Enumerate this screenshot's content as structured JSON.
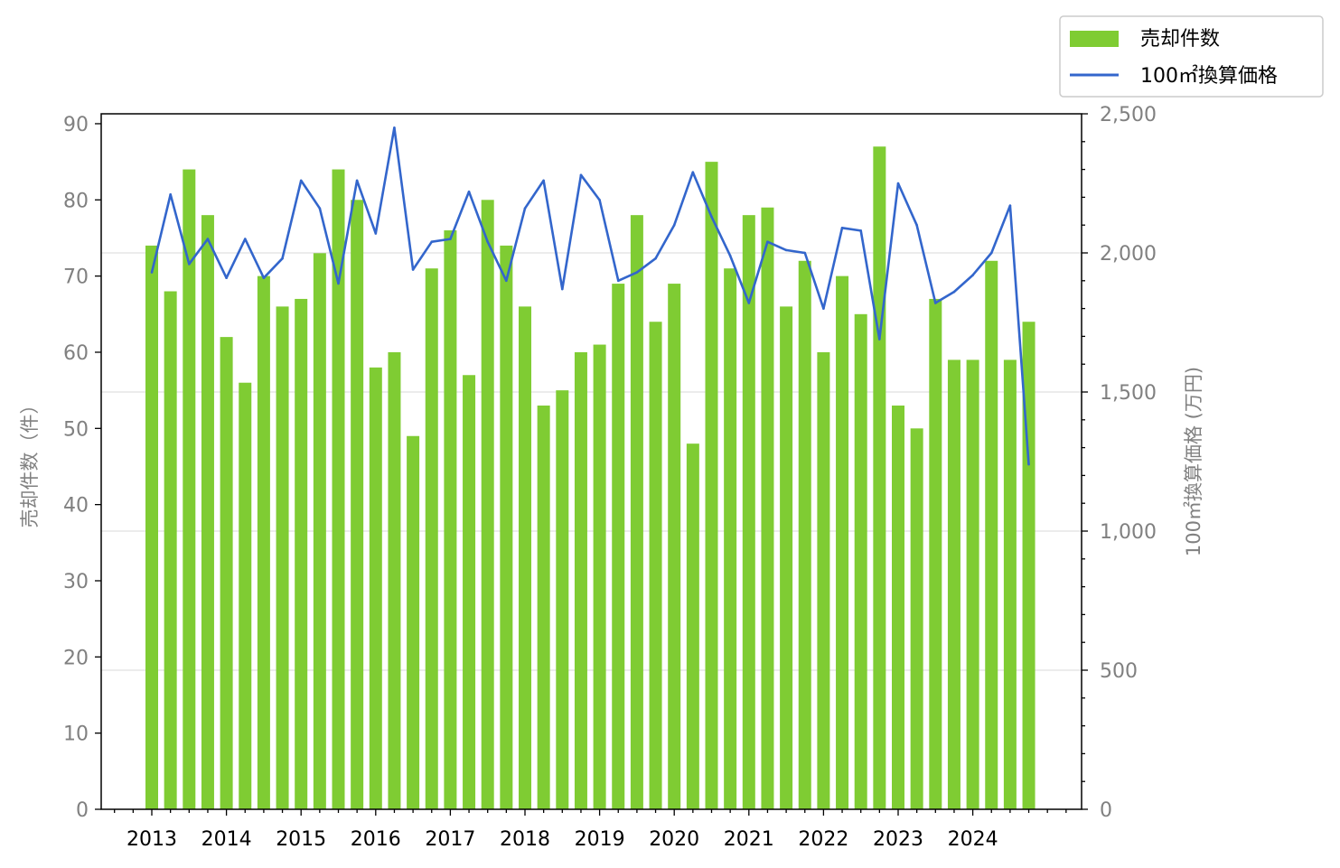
{
  "chart_data": {
    "type": "bar",
    "ylabel": "売却件数（件）",
    "y2label": "100㎡換算価格 (万円)",
    "ylim": [
      0,
      91.3
    ],
    "y2lim": [
      0,
      2500
    ],
    "yticks": [
      0,
      10,
      20,
      30,
      40,
      50,
      60,
      70,
      80,
      90
    ],
    "y2ticks": [
      0,
      500,
      1000,
      1500,
      2000,
      2500
    ],
    "y2tick_labels": [
      "0",
      "500",
      "1,000",
      "1,500",
      "2,000",
      "2,500"
    ],
    "xticks": [
      "2013",
      "2014",
      "2015",
      "2016",
      "2017",
      "2018",
      "2019",
      "2020",
      "2021",
      "2022",
      "2023",
      "2024"
    ],
    "grid": "horizontal (right axis)",
    "legend_position": "top-right",
    "series": [
      {
        "name": "売却件数",
        "kind": "bar",
        "color": "#7fcc33",
        "x": [
          "2013-Q1",
          "2013-Q2",
          "2013-Q3",
          "2013-Q4",
          "2014-Q1",
          "2014-Q2",
          "2014-Q3",
          "2014-Q4",
          "2015-Q1",
          "2015-Q2",
          "2015-Q3",
          "2015-Q4",
          "2016-Q1",
          "2016-Q2",
          "2016-Q3",
          "2016-Q4",
          "2017-Q1",
          "2017-Q2",
          "2017-Q3",
          "2017-Q4",
          "2018-Q1",
          "2018-Q2",
          "2018-Q3",
          "2018-Q4",
          "2019-Q1",
          "2019-Q2",
          "2019-Q3",
          "2019-Q4",
          "2020-Q1",
          "2020-Q2",
          "2020-Q3",
          "2020-Q4",
          "2021-Q1",
          "2021-Q2",
          "2021-Q3",
          "2021-Q4",
          "2022-Q1",
          "2022-Q2",
          "2022-Q3",
          "2022-Q4",
          "2023-Q1",
          "2023-Q2",
          "2023-Q3",
          "2023-Q4",
          "2024-Q1",
          "2024-Q2",
          "2024-Q3",
          "2024-Q4"
        ],
        "values": [
          74,
          68,
          84,
          78,
          62,
          56,
          70,
          66,
          67,
          73,
          84,
          80,
          58,
          60,
          49,
          71,
          76,
          57,
          80,
          74,
          66,
          53,
          55,
          60,
          61,
          69,
          78,
          64,
          69,
          48,
          85,
          71,
          78,
          79,
          66,
          72,
          60,
          70,
          65,
          87,
          53,
          50,
          67,
          59,
          59,
          72,
          59,
          64
        ]
      },
      {
        "name": "100㎡換算価格",
        "kind": "line",
        "axis": "right",
        "color": "#3366cc",
        "x": [
          "2013-Q1",
          "2013-Q2",
          "2013-Q3",
          "2013-Q4",
          "2014-Q1",
          "2014-Q2",
          "2014-Q3",
          "2014-Q4",
          "2015-Q1",
          "2015-Q2",
          "2015-Q3",
          "2015-Q4",
          "2016-Q1",
          "2016-Q2",
          "2016-Q3",
          "2016-Q4",
          "2017-Q1",
          "2017-Q2",
          "2017-Q3",
          "2017-Q4",
          "2018-Q1",
          "2018-Q2",
          "2018-Q3",
          "2018-Q4",
          "2019-Q1",
          "2019-Q2",
          "2019-Q3",
          "2019-Q4",
          "2020-Q1",
          "2020-Q2",
          "2020-Q3",
          "2020-Q4",
          "2021-Q1",
          "2021-Q2",
          "2021-Q3",
          "2021-Q4",
          "2022-Q1",
          "2022-Q2",
          "2022-Q3",
          "2022-Q4",
          "2023-Q1",
          "2023-Q2",
          "2023-Q3",
          "2023-Q4",
          "2024-Q1",
          "2024-Q2",
          "2024-Q3",
          "2024-Q4"
        ],
        "values": [
          1930,
          2210,
          1960,
          2050,
          1910,
          2050,
          1910,
          1980,
          2260,
          2160,
          1890,
          2260,
          2070,
          2450,
          1940,
          2040,
          2050,
          2220,
          2040,
          1900,
          2160,
          2260,
          1870,
          2280,
          2190,
          1900,
          1930,
          1980,
          2100,
          2290,
          2130,
          1990,
          1820,
          2040,
          2010,
          2000,
          1800,
          2090,
          2080,
          1690,
          2250,
          2100,
          1820,
          1860,
          1920,
          2000,
          2170,
          1240
        ]
      }
    ]
  }
}
